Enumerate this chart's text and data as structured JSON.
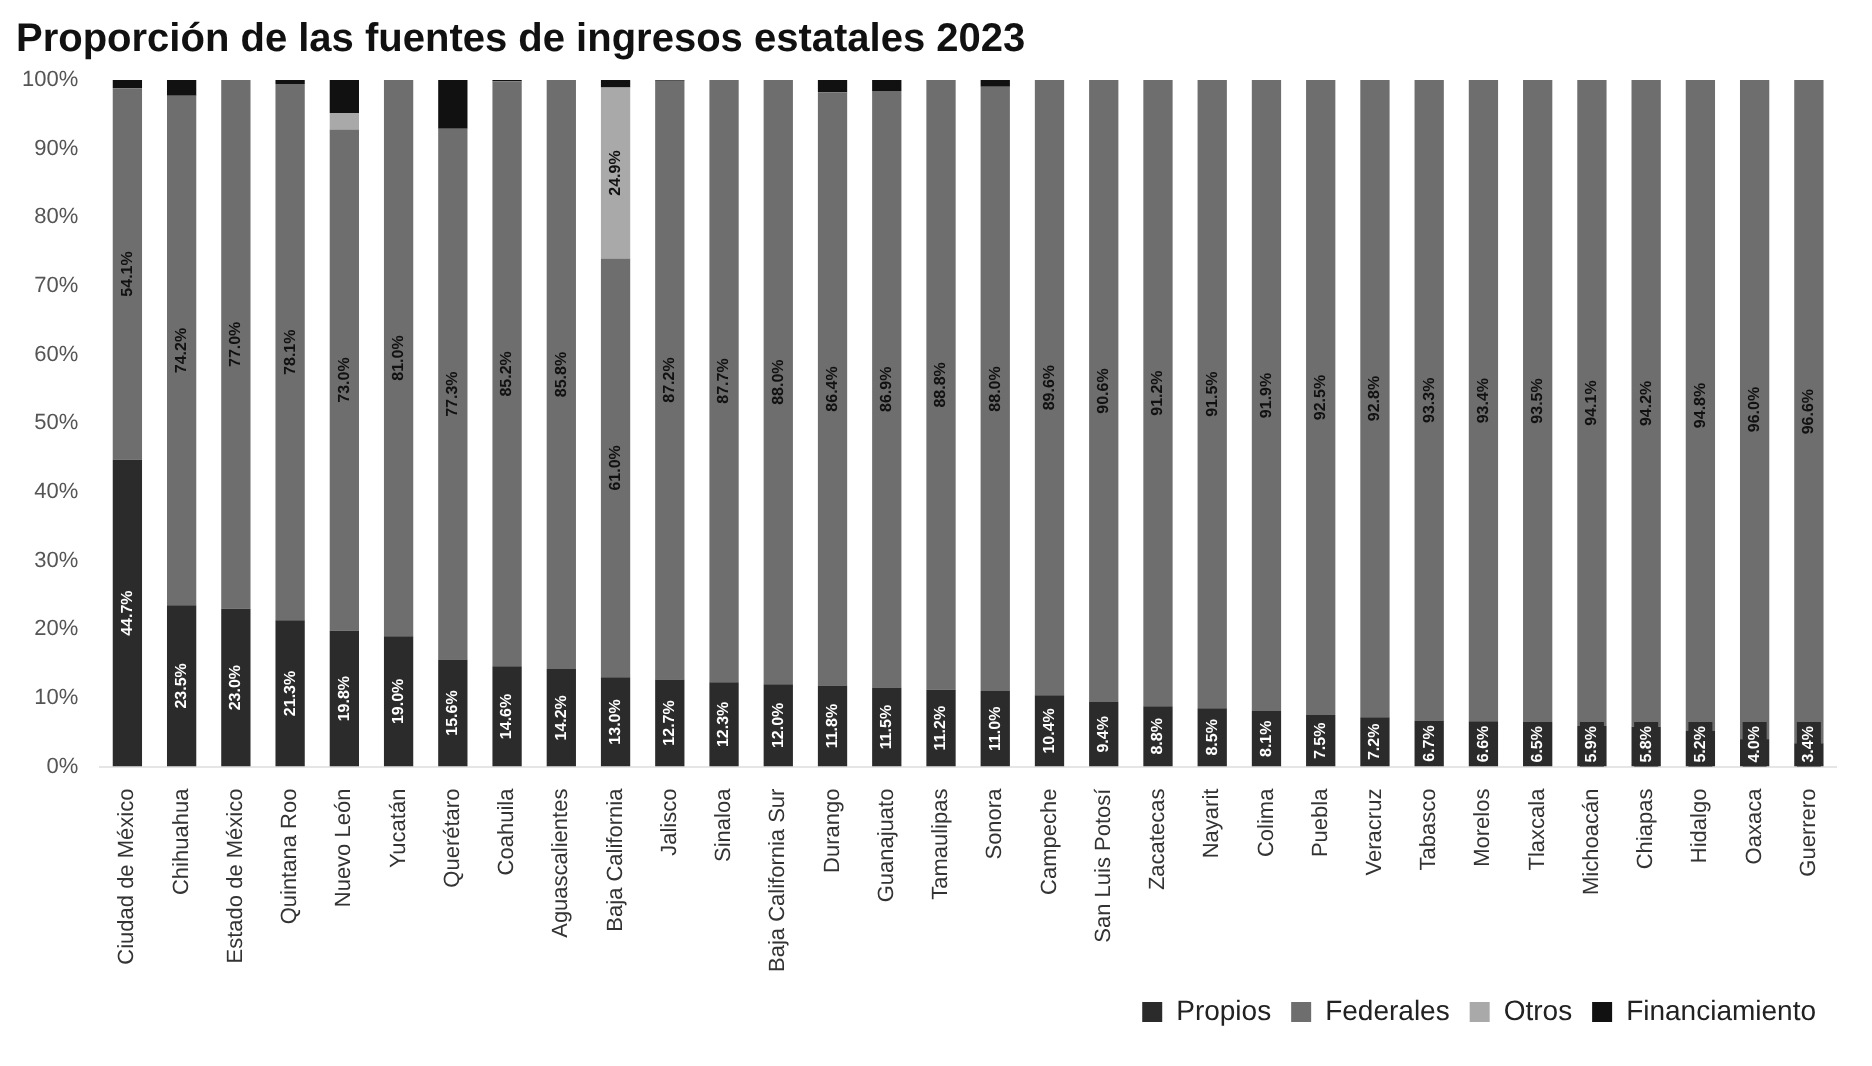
{
  "chart_data": {
    "type": "bar",
    "stacked": true,
    "title": "Proporción de las fuentes de ingresos estatales 2023",
    "categories": [
      "Ciudad de México",
      "Chihuahua",
      "Estado de México",
      "Quintana Roo",
      "Nuevo León",
      "Yucatán",
      "Querétaro",
      "Coahuila",
      "Aguascalientes",
      "Baja California",
      "Jalisco",
      "Sinaloa",
      "Baja California Sur",
      "Durango",
      "Guanajuato",
      "Tamaulipas",
      "Sonora",
      "Campeche",
      "San Luis Potosí",
      "Zacatecas",
      "Nayarit",
      "Colima",
      "Puebla",
      "Veracruz",
      "Tabasco",
      "Morelos",
      "Tlaxcala",
      "Michoacán",
      "Chiapas",
      "Hidalgo",
      "Oaxaca",
      "Guerrero"
    ],
    "series": [
      {
        "name": "Propios",
        "color": "#2b2b2b",
        "values": [
          44.7,
          23.5,
          23.0,
          21.3,
          19.8,
          19.0,
          15.6,
          14.6,
          14.2,
          13.0,
          12.7,
          12.3,
          12.0,
          11.8,
          11.5,
          11.2,
          11.0,
          10.4,
          9.4,
          8.8,
          8.5,
          8.1,
          7.5,
          7.2,
          6.7,
          6.6,
          6.5,
          5.9,
          5.8,
          5.2,
          4.0,
          3.4
        ],
        "value_labels": [
          "44.7%",
          "23.5%",
          "23.0%",
          "21.3%",
          "19.8%",
          "19.0%",
          "15.6%",
          "14.6%",
          "14.2%",
          "13.0%",
          "12.7%",
          "12.3%",
          "12.0%",
          "11.8%",
          "11.5%",
          "11.2%",
          "11.0%",
          "10.4%",
          "9.4%",
          "8.8%",
          "8.5%",
          "8.1%",
          "7.5%",
          "7.2%",
          "6.7%",
          "6.6%",
          "6.5%",
          "5.9%",
          "5.8%",
          "5.2%",
          "4.0%",
          "3.4%"
        ]
      },
      {
        "name": "Federales",
        "color": "#6e6e6e",
        "values": [
          54.1,
          74.2,
          77.0,
          78.1,
          73.0,
          81.0,
          77.3,
          85.2,
          85.8,
          61.0,
          87.2,
          87.7,
          88.0,
          86.4,
          86.9,
          88.8,
          88.0,
          89.6,
          90.6,
          91.2,
          91.5,
          91.9,
          92.5,
          92.8,
          93.3,
          93.4,
          93.5,
          94.1,
          94.2,
          94.8,
          96.0,
          96.6
        ],
        "value_labels": [
          "54.1%",
          "74.2%",
          "77.0%",
          "78.1%",
          "73.0%",
          "81.0%",
          "77.3%",
          "85.2%",
          "85.8%",
          "61.0%",
          "87.2%",
          "87.7%",
          "88.0%",
          "86.4%",
          "86.9%",
          "88.8%",
          "88.0%",
          "89.6%",
          "90.6%",
          "91.2%",
          "91.5%",
          "91.9%",
          "92.5%",
          "92.8%",
          "93.3%",
          "93.4%",
          "93.5%",
          "94.1%",
          "94.2%",
          "94.8%",
          "96.0%",
          "96.6%"
        ]
      },
      {
        "name": "Otros",
        "color": "#a9a9a9",
        "values": [
          0,
          0,
          0,
          0,
          2.4,
          0,
          0,
          0,
          0,
          24.9,
          0,
          0,
          0,
          0,
          0,
          0,
          0,
          0,
          0,
          0,
          0,
          0,
          0,
          0,
          0,
          0,
          0,
          0,
          0,
          0,
          0,
          0
        ],
        "value_labels": [
          null,
          null,
          null,
          null,
          null,
          null,
          null,
          null,
          null,
          "24.9%",
          null,
          null,
          null,
          null,
          null,
          null,
          null,
          null,
          null,
          null,
          null,
          null,
          null,
          null,
          null,
          null,
          null,
          null,
          null,
          null,
          null,
          null
        ]
      },
      {
        "name": "Financiamiento",
        "color": "#111111",
        "values": [
          1.2,
          2.3,
          0,
          0.6,
          4.8,
          0,
          7.1,
          0.2,
          0,
          1.1,
          0.1,
          0,
          0,
          1.8,
          1.6,
          0,
          1.0,
          0,
          0,
          0,
          0,
          0,
          0,
          0,
          0,
          0,
          0,
          0,
          0,
          0,
          0,
          0
        ]
      }
    ],
    "ylim": [
      0,
      100
    ],
    "yticks": [
      {
        "value": 0,
        "label": "0%"
      },
      {
        "value": 10,
        "label": "10%"
      },
      {
        "value": 20,
        "label": "20%"
      },
      {
        "value": 30,
        "label": "30%"
      },
      {
        "value": 40,
        "label": "40%"
      },
      {
        "value": 50,
        "label": "50%"
      },
      {
        "value": 60,
        "label": "60%"
      },
      {
        "value": 70,
        "label": "70%"
      },
      {
        "value": 80,
        "label": "80%"
      },
      {
        "value": 90,
        "label": "90%"
      },
      {
        "value": 100,
        "label": "100%"
      }
    ],
    "grid": false,
    "legend": "bottom right"
  }
}
